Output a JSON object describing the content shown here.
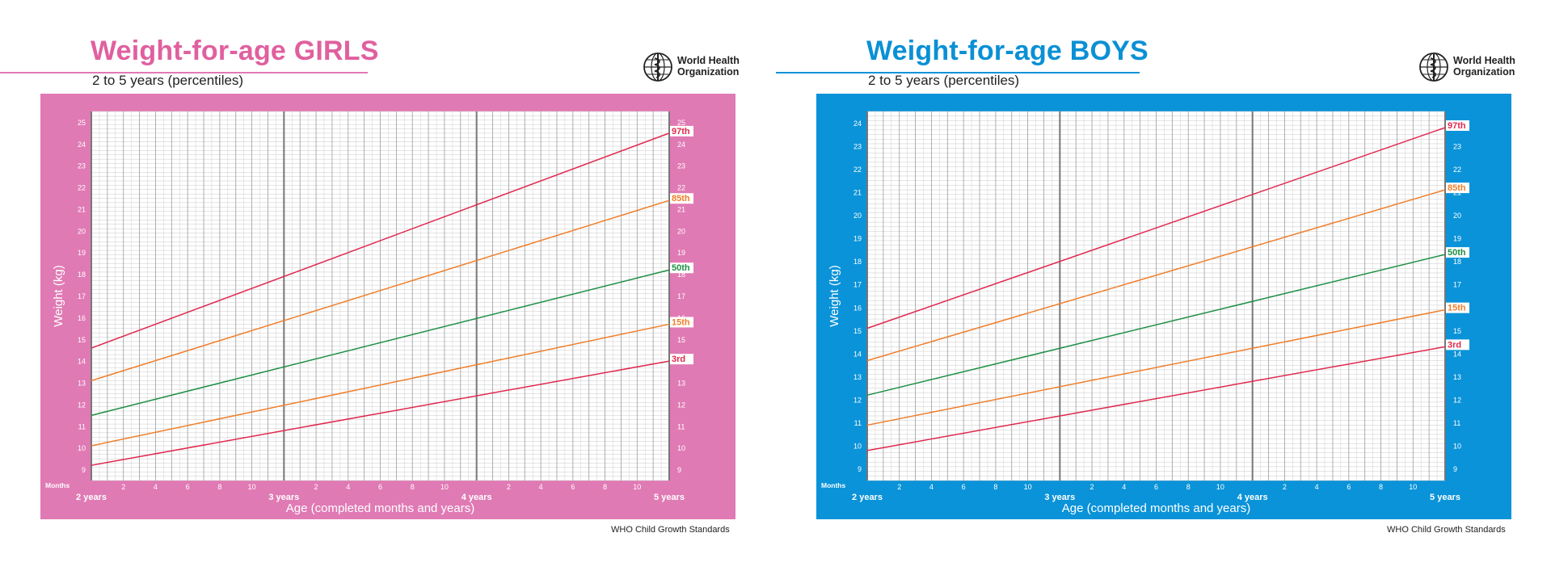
{
  "standards_label": "WHO Child Growth Standards",
  "who_logo": {
    "line1": "World Health",
    "line2": "Organization",
    "icon": "who-emblem-icon"
  },
  "chart_data": [
    {
      "id": "girls",
      "type": "line",
      "title": "Weight-for-age GIRLS",
      "subtitle": "2 to 5 years (percentiles)",
      "accent_color": "#e07ab4",
      "title_color": "#e0609f",
      "xlabel": "Age (completed months and years)",
      "ylabel": "Weight (kg)",
      "months_label": "Months",
      "xlim": [
        24,
        60
      ],
      "ylim": [
        8.5,
        25.5
      ],
      "y_ticks": [
        9,
        10,
        11,
        12,
        13,
        14,
        15,
        16,
        17,
        18,
        19,
        20,
        21,
        22,
        23,
        24,
        25
      ],
      "year_ticks": [
        {
          "x": 24,
          "label": "2 years"
        },
        {
          "x": 36,
          "label": "3 years"
        },
        {
          "x": 48,
          "label": "4 years"
        },
        {
          "x": 60,
          "label": "5 years"
        }
      ],
      "month_ticks": [
        "2",
        "4",
        "6",
        "8",
        "10"
      ],
      "series": [
        {
          "name": "97th",
          "color": "#e0284e",
          "x": [
            24,
            60
          ],
          "values": [
            14.6,
            24.5
          ]
        },
        {
          "name": "85th",
          "color": "#f07e2a",
          "x": [
            24,
            60
          ],
          "values": [
            13.1,
            21.4
          ]
        },
        {
          "name": "50th",
          "color": "#1e8f44",
          "x": [
            24,
            60
          ],
          "values": [
            11.5,
            18.2
          ]
        },
        {
          "name": "15th",
          "color": "#f07e2a",
          "x": [
            24,
            60
          ],
          "values": [
            10.1,
            15.7
          ]
        },
        {
          "name": "3rd",
          "color": "#e0284e",
          "x": [
            24,
            60
          ],
          "values": [
            9.2,
            14.0
          ]
        }
      ]
    },
    {
      "id": "boys",
      "type": "line",
      "title": "Weight-for-age BOYS",
      "subtitle": "2 to 5 years (percentiles)",
      "accent_color": "#0a93d8",
      "title_color": "#0a90d4",
      "xlabel": "Age (completed months and years)",
      "ylabel": "Weight (kg)",
      "months_label": "Months",
      "xlim": [
        24,
        60
      ],
      "ylim": [
        8.5,
        24.5
      ],
      "y_ticks": [
        9,
        10,
        11,
        12,
        13,
        14,
        15,
        16,
        17,
        18,
        19,
        20,
        21,
        22,
        23,
        24
      ],
      "year_ticks": [
        {
          "x": 24,
          "label": "2 years"
        },
        {
          "x": 36,
          "label": "3 years"
        },
        {
          "x": 48,
          "label": "4 years"
        },
        {
          "x": 60,
          "label": "5 years"
        }
      ],
      "month_ticks": [
        "2",
        "4",
        "6",
        "8",
        "10"
      ],
      "series": [
        {
          "name": "97th",
          "color": "#e0284e",
          "x": [
            24,
            60
          ],
          "values": [
            15.1,
            23.8
          ]
        },
        {
          "name": "85th",
          "color": "#f07e2a",
          "x": [
            24,
            60
          ],
          "values": [
            13.7,
            21.1
          ]
        },
        {
          "name": "50th",
          "color": "#1e8f44",
          "x": [
            24,
            60
          ],
          "values": [
            12.2,
            18.3
          ]
        },
        {
          "name": "15th",
          "color": "#f07e2a",
          "x": [
            24,
            60
          ],
          "values": [
            10.9,
            15.9
          ]
        },
        {
          "name": "3rd",
          "color": "#e0284e",
          "x": [
            24,
            60
          ],
          "values": [
            9.8,
            14.3
          ]
        }
      ]
    }
  ]
}
